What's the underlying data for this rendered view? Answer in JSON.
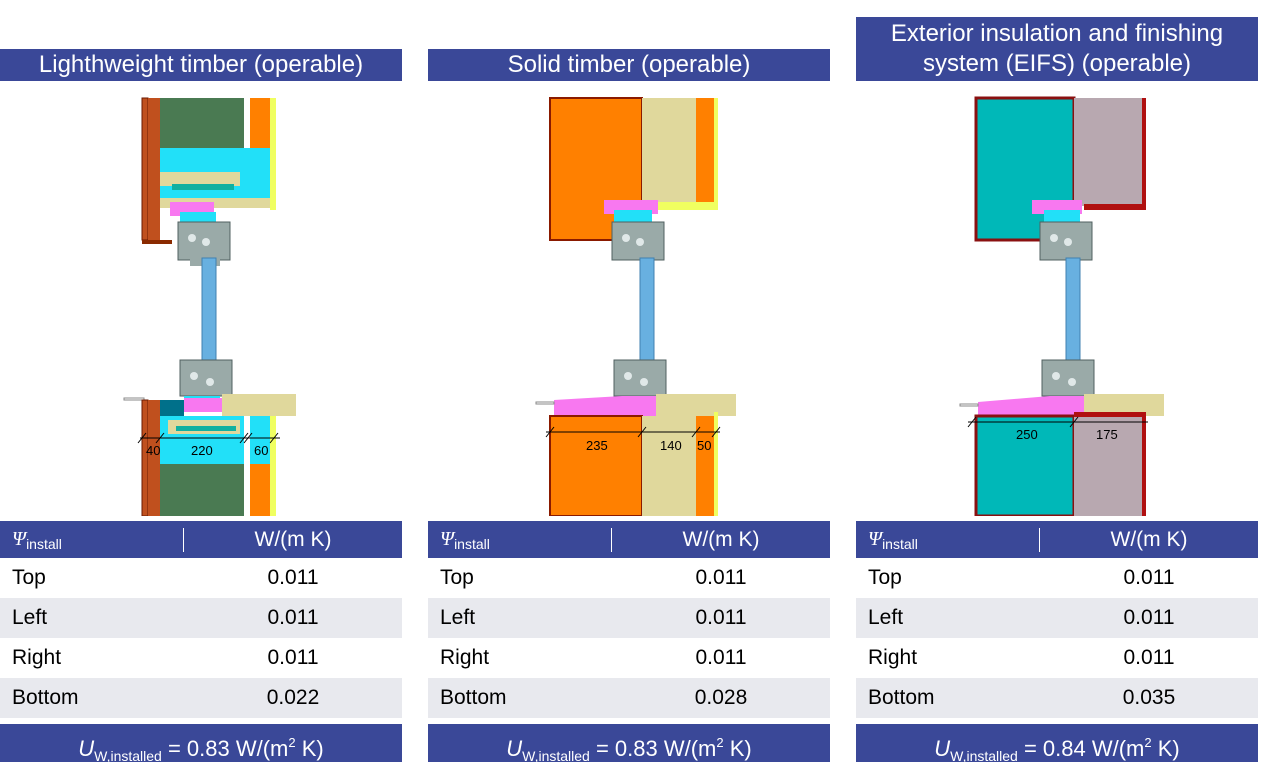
{
  "columns": [
    {
      "title": "Lighthweight timber (operable)",
      "title_lines": [
        "Lighthweight timber (operable)"
      ],
      "dimensions": [
        "40",
        "220",
        "60"
      ],
      "table": {
        "header_symbol": "Ψ",
        "header_sub": "install",
        "header_unit": "W/(m K)",
        "rows": [
          {
            "label": "Top",
            "value": "0.011"
          },
          {
            "label": "Left",
            "value": "0.011"
          },
          {
            "label": "Right",
            "value": "0.011"
          },
          {
            "label": "Bottom",
            "value": "0.022"
          }
        ]
      },
      "footer": {
        "symbol": "U",
        "sub": "W,installed",
        "eq": " = 0.83 W/(m",
        "sup": "2",
        "tail": " K)"
      }
    },
    {
      "title": "Solid timber (operable)",
      "title_lines": [
        "Solid timber (operable)"
      ],
      "dimensions": [
        "235",
        "140",
        "50"
      ],
      "table": {
        "header_symbol": "Ψ",
        "header_sub": "install",
        "header_unit": "W/(m K)",
        "rows": [
          {
            "label": "Top",
            "value": "0.011"
          },
          {
            "label": "Left",
            "value": "0.011"
          },
          {
            "label": "Right",
            "value": "0.011"
          },
          {
            "label": "Bottom",
            "value": "0.028"
          }
        ]
      },
      "footer": {
        "symbol": "U",
        "sub": "W,installed",
        "eq": " = 0.83 W/(m",
        "sup": "2",
        "tail": " K)"
      }
    },
    {
      "title": "Exterior insulation and finishing system (EIFS) (operable)",
      "title_lines": [
        "Exterior insulation and finishing",
        "system (EIFS) (operable)"
      ],
      "dimensions": [
        "250",
        "175"
      ],
      "table": {
        "header_symbol": "Ψ",
        "header_sub": "install",
        "header_unit": "W/(m K)",
        "rows": [
          {
            "label": "Top",
            "value": "0.011"
          },
          {
            "label": "Left",
            "value": "0.011"
          },
          {
            "label": "Right",
            "value": "0.011"
          },
          {
            "label": "Bottom",
            "value": "0.035"
          }
        ]
      },
      "footer": {
        "symbol": "U",
        "sub": "W,installed",
        "eq": " = 0.84 W/(m",
        "sup": "2",
        "tail": " K)"
      }
    }
  ],
  "colors": {
    "header_bg": "#3a4898",
    "row_alt": "#e8e9ee",
    "brown": "#c0501e",
    "dark_green": "#4a7a52",
    "cyan": "#22e0f8",
    "orange": "#ff8000",
    "yellow_green": "#f0ff60",
    "pink": "#f878f0",
    "beige": "#e0d89c",
    "teal": "#00b8b8",
    "mauve": "#b8a8b0",
    "dark_red": "#b01010",
    "glass": "#68b0e0",
    "frame_grey": "#9aaaa8"
  }
}
